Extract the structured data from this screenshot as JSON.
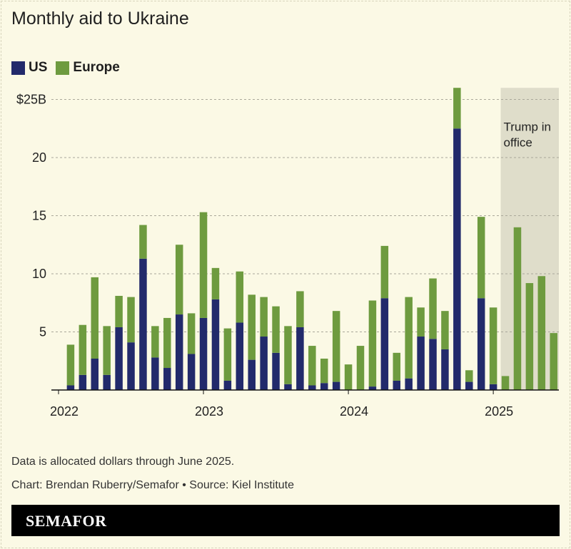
{
  "chart_data": {
    "type": "bar",
    "stacked": true,
    "title": "Monthly aid to Ukraine",
    "xlabel": "",
    "ylabel": "",
    "ylim": [
      0,
      26
    ],
    "yticks": [
      {
        "value": 5,
        "label": "5"
      },
      {
        "value": 10,
        "label": "10"
      },
      {
        "value": 15,
        "label": "15"
      },
      {
        "value": 20,
        "label": "20"
      },
      {
        "value": 25,
        "label": "$25B"
      }
    ],
    "xticks": [
      {
        "date": "2022-01",
        "label": "2022"
      },
      {
        "date": "2023-01",
        "label": "2023"
      },
      {
        "date": "2024-01",
        "label": "2024"
      },
      {
        "date": "2025-01",
        "label": "2025"
      }
    ],
    "grid": true,
    "legend_position": "top-left",
    "categories": [
      "2022-02",
      "2022-03",
      "2022-04",
      "2022-05",
      "2022-06",
      "2022-07",
      "2022-08",
      "2022-09",
      "2022-10",
      "2022-11",
      "2022-12",
      "2023-01",
      "2023-02",
      "2023-03",
      "2023-04",
      "2023-05",
      "2023-06",
      "2023-07",
      "2023-08",
      "2023-09",
      "2023-10",
      "2023-11",
      "2023-12",
      "2024-01",
      "2024-02",
      "2024-03",
      "2024-04",
      "2024-05",
      "2024-06",
      "2024-07",
      "2024-08",
      "2024-09",
      "2024-10",
      "2024-11",
      "2024-12",
      "2025-01",
      "2025-02",
      "2025-03",
      "2025-04",
      "2025-05",
      "2025-06"
    ],
    "series": [
      {
        "name": "US",
        "color": "#222a6b",
        "values": [
          0.4,
          1.3,
          2.7,
          1.3,
          5.4,
          4.1,
          11.3,
          2.8,
          1.9,
          6.5,
          3.1,
          6.2,
          7.8,
          0.8,
          5.8,
          2.6,
          4.6,
          3.2,
          0.5,
          5.4,
          0.4,
          0.6,
          0.7,
          0,
          0,
          0.3,
          7.9,
          0.8,
          1.0,
          4.6,
          4.4,
          3.5,
          22.5,
          0.7,
          7.9,
          0.5,
          0,
          0,
          0,
          0,
          0
        ]
      },
      {
        "name": "Europe",
        "color": "#6e9b3f",
        "values": [
          3.5,
          4.3,
          7.0,
          4.2,
          2.7,
          3.9,
          2.9,
          2.7,
          4.3,
          6.0,
          3.5,
          9.1,
          2.7,
          4.5,
          4.4,
          5.6,
          3.4,
          4.0,
          5.0,
          3.1,
          3.4,
          2.1,
          6.1,
          2.2,
          3.8,
          7.4,
          4.5,
          2.4,
          7.0,
          2.5,
          5.2,
          3.3,
          3.5,
          1.0,
          7.0,
          6.6,
          1.2,
          14.0,
          9.2,
          9.8,
          4.9
        ]
      }
    ],
    "annotations": [
      {
        "label": "Trump in office",
        "start": "2025-01-20",
        "end": "2025-06",
        "shade_color": "#dfddca"
      }
    ]
  },
  "legend": {
    "us": "US",
    "europe": "Europe"
  },
  "notes": {
    "data_note": "Data is allocated dollars through June 2025.",
    "credit": "Chart: Brendan Ruberry/Semafor • Source: Kiel Institute"
  },
  "footer": {
    "logo": "SEMAFOR"
  }
}
